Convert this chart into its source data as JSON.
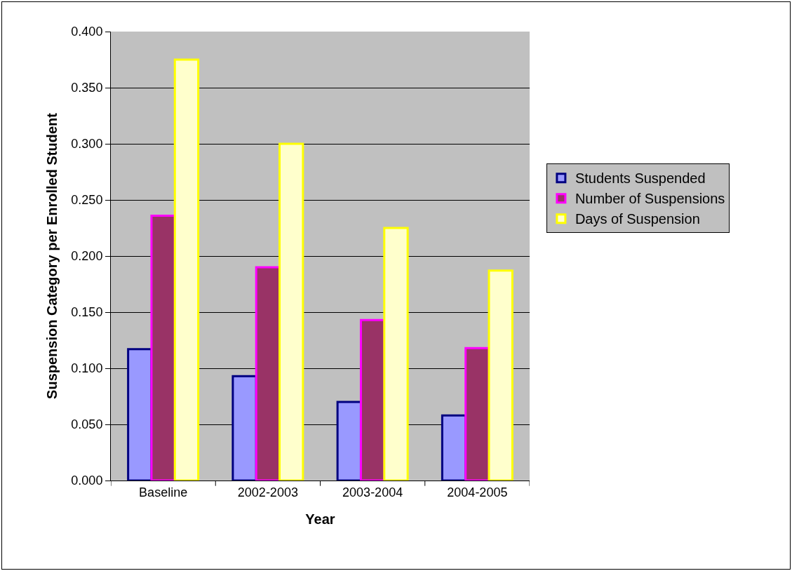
{
  "chart_data": {
    "type": "bar",
    "xlabel": "Year",
    "ylabel": "Suspension Category per Enrolled Student",
    "categories": [
      "Baseline",
      "2002-2003",
      "2003-2004",
      "2004-2005"
    ],
    "series": [
      {
        "name": "Students Suspended",
        "color": "#9999ff",
        "values": [
          0.117,
          0.093,
          0.07,
          0.058
        ]
      },
      {
        "name": "Number of Suspensions",
        "color": "#993366",
        "values": [
          0.236,
          0.19,
          0.143,
          0.118
        ]
      },
      {
        "name": "Days of Suspension",
        "color": "#ffffcc",
        "values": [
          0.375,
          0.3,
          0.225,
          0.187
        ]
      }
    ],
    "ylim": [
      0,
      0.4
    ],
    "yticks": [
      {
        "value": 0,
        "label": "0.000"
      },
      {
        "value": 0.05,
        "label": "0.050"
      },
      {
        "value": 0.1,
        "label": "0.100"
      },
      {
        "value": 0.15,
        "label": "0.150"
      },
      {
        "value": 0.2,
        "label": "0.200"
      },
      {
        "value": 0.25,
        "label": "0.250"
      },
      {
        "value": 0.3,
        "label": "0.300"
      },
      {
        "value": 0.35,
        "label": "0.350"
      },
      {
        "value": 0.4,
        "label": "0.400"
      }
    ],
    "grid": "y",
    "legend": "right"
  }
}
